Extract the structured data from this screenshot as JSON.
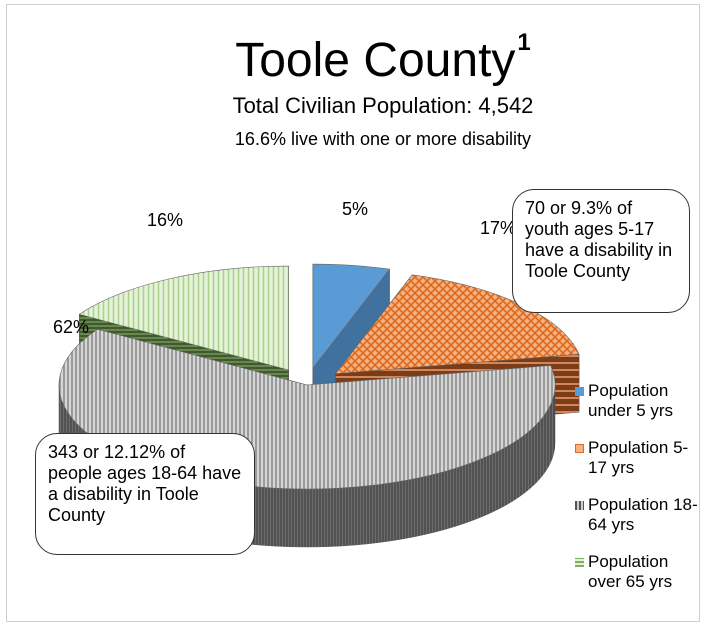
{
  "chart_data": {
    "type": "pie",
    "title": "Toole County",
    "title_superscript": "1",
    "subtitle": "Total Civilian Population: 4,542",
    "subtitle2": "16.6% live with one or more disability",
    "slices": [
      {
        "label": "Population under 5 yrs",
        "value": 5,
        "display": "5%",
        "color": "#5b9bd5",
        "exploded": true
      },
      {
        "label": "Population 5-17 yrs",
        "value": 17,
        "display": "17%",
        "color": "#ed7d31",
        "exploded": true
      },
      {
        "label": "Population 18-64 yrs",
        "value": 62,
        "display": "62%",
        "color": "#a5a5a5",
        "exploded": false
      },
      {
        "label": "Population over 65 yrs",
        "value": 16,
        "display": "16%",
        "color": "#a9d18e",
        "exploded": true
      }
    ],
    "legend_position": "right",
    "style": "3d-exploded",
    "annotations": [
      "70 or 9.3% of youth ages 5-17 have a disability in Toole County",
      "343 or 12.12% of people ages 18-64 have a disability in Toole County"
    ]
  }
}
